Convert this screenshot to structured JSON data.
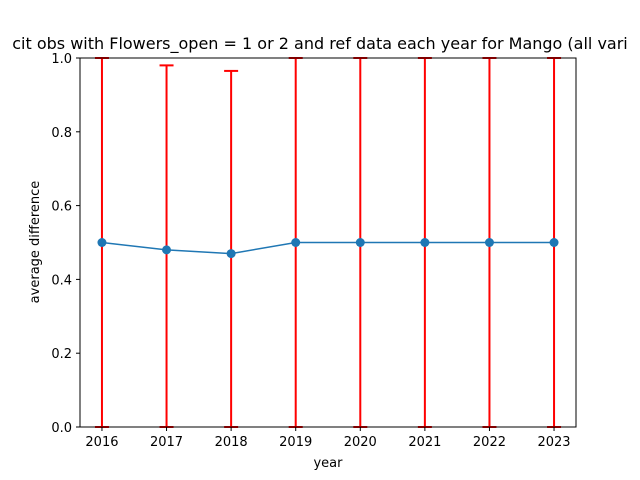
{
  "chart_data": {
    "type": "line",
    "title": "cit obs with Flowers_open = 1 or 2 and ref data each year for Mango (all vari",
    "xlabel": "year",
    "ylabel": "average difference",
    "x": [
      2016,
      2017,
      2018,
      2019,
      2020,
      2021,
      2022,
      2023
    ],
    "x_tick_labels": [
      "2016",
      "2017",
      "2018",
      "2019",
      "2020",
      "2021",
      "2022",
      "2023"
    ],
    "ylim": [
      0.0,
      1.0
    ],
    "y_ticks": [
      0.0,
      0.2,
      0.4,
      0.6,
      0.8,
      1.0
    ],
    "y_tick_labels": [
      "0.0",
      "0.2",
      "0.4",
      "0.6",
      "0.8",
      "1.0"
    ],
    "grid": false,
    "series": [
      {
        "values": [
          0.5,
          0.48,
          0.47,
          0.5,
          0.5,
          0.5,
          0.5,
          0.5
        ],
        "error_low": [
          0.0,
          0.0,
          0.0,
          0.0,
          0.0,
          0.0,
          0.0,
          0.0
        ],
        "error_high": [
          1.0,
          0.98,
          0.965,
          1.0,
          1.0,
          1.0,
          1.0,
          1.0
        ]
      }
    ],
    "colors": {
      "line": "#1f77b4",
      "error_bars": "#ff0000",
      "axes": "#000000"
    }
  }
}
